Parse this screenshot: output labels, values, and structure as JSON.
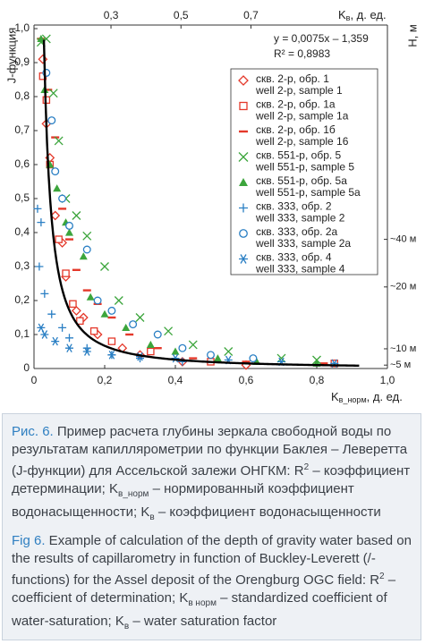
{
  "chart_data": {
    "type": "scatter",
    "ylabel": "J-функция",
    "xlabel_main": "K",
    "xlabel_sub": "в_норм",
    "xlabel_rest": ", д. ед.",
    "x2label_main": "K",
    "x2label_sub": "в",
    "x2label_rest": ", д. ед.",
    "y2label": "H, м",
    "equation": "y = 0,0075x – 1,359",
    "r2": "R² = 0,8983",
    "fit": {
      "a": 0.0075,
      "b": -1.359,
      "x_range": [
        0.028,
        0.92
      ]
    },
    "xlim": [
      0,
      1.0
    ],
    "ylim": [
      0,
      1.0
    ],
    "xticks": [
      0,
      {
        "value": 0.2,
        "label": "0,2"
      },
      {
        "value": 0.4,
        "label": "0,4"
      },
      {
        "value": 0.6,
        "label": "0,6"
      },
      {
        "value": 0.8,
        "label": "0,8"
      },
      {
        "value": 1.0,
        "label": "1,0"
      }
    ],
    "yticks": [
      0,
      {
        "value": 0.1,
        "label": "0,1"
      },
      {
        "value": 0.2,
        "label": "0,2"
      },
      {
        "value": 0.3,
        "label": "0,3"
      },
      {
        "value": 0.4,
        "label": "0,4"
      },
      {
        "value": 0.5,
        "label": "0,5"
      },
      {
        "value": 0.6,
        "label": "0,6"
      },
      {
        "value": 0.7,
        "label": "0,7"
      },
      {
        "value": 0.8,
        "label": "0,8"
      },
      {
        "value": 0.9,
        "label": "0,9"
      },
      {
        "value": 1.0,
        "label": "1,0"
      }
    ],
    "x2lim": [
      0.08,
      1.09
    ],
    "x2ticks": [
      {
        "value": 0.3,
        "label": "0,3"
      },
      {
        "value": 0.5,
        "label": "0,5"
      },
      {
        "value": 0.7,
        "label": "0,7"
      }
    ],
    "h_markers": [
      {
        "label": "~40 м",
        "j": 0.38
      },
      {
        "label": "~20 м",
        "j": 0.24
      },
      {
        "label": "~10 м",
        "j": 0.058
      },
      {
        "label": "~5 м",
        "j": 0.01
      }
    ],
    "series": [
      {
        "name": "скв. 2-р, обр. 1",
        "name_en": "well 2-р, sample 1",
        "marker": "diamond",
        "color": "#e4382a",
        "points": [
          [
            0.025,
            0.91
          ],
          [
            0.035,
            0.72
          ],
          [
            0.045,
            0.62
          ],
          [
            0.06,
            0.45
          ],
          [
            0.08,
            0.37
          ],
          [
            0.09,
            0.27
          ],
          [
            0.12,
            0.17
          ],
          [
            0.14,
            0.15
          ],
          [
            0.18,
            0.1
          ],
          [
            0.25,
            0.06
          ],
          [
            0.3,
            0.04
          ],
          [
            0.42,
            0.02
          ],
          [
            0.6,
            0.01
          ]
        ]
      },
      {
        "name": "скв. 2-р, обр. 1а",
        "name_en": "well 2-р, sample 1a",
        "marker": "square",
        "color": "#e4382a",
        "points": [
          [
            0.025,
            0.86
          ],
          [
            0.035,
            0.79
          ],
          [
            0.045,
            0.6
          ],
          [
            0.07,
            0.38
          ],
          [
            0.09,
            0.28
          ],
          [
            0.11,
            0.19
          ],
          [
            0.13,
            0.14
          ],
          [
            0.17,
            0.11
          ],
          [
            0.22,
            0.08
          ],
          [
            0.33,
            0.05
          ],
          [
            0.5,
            0.02
          ],
          [
            0.85,
            0.015
          ]
        ]
      },
      {
        "name": "скв. 2-р, обр. 1б",
        "name_en": "well 2-р, sample 16",
        "marker": "dash",
        "color": "#e4382a",
        "points": [
          [
            0.02,
            0.97
          ],
          [
            0.04,
            0.82
          ],
          [
            0.06,
            0.68
          ],
          [
            0.08,
            0.47
          ],
          [
            0.1,
            0.38
          ],
          [
            0.12,
            0.29
          ],
          [
            0.15,
            0.23
          ],
          [
            0.18,
            0.19
          ],
          [
            0.22,
            0.15
          ],
          [
            0.27,
            0.1
          ],
          [
            0.35,
            0.06
          ],
          [
            0.45,
            0.03
          ],
          [
            0.6,
            0.02
          ],
          [
            0.82,
            0.015
          ]
        ]
      },
      {
        "name": "скв. 551-р, обр. 5",
        "name_en": "well 551-р, sample 5",
        "marker": "cross",
        "color": "#3ca53c",
        "points": [
          [
            0.02,
            0.96
          ],
          [
            0.035,
            0.97
          ],
          [
            0.055,
            0.81
          ],
          [
            0.07,
            0.67
          ],
          [
            0.09,
            0.5
          ],
          [
            0.12,
            0.45
          ],
          [
            0.15,
            0.39
          ],
          [
            0.2,
            0.3
          ],
          [
            0.24,
            0.2
          ],
          [
            0.3,
            0.15
          ],
          [
            0.38,
            0.11
          ],
          [
            0.45,
            0.07
          ],
          [
            0.55,
            0.05
          ],
          [
            0.7,
            0.03
          ],
          [
            0.8,
            0.025
          ]
        ]
      },
      {
        "name": "скв. 551-р, обр. 5а",
        "name_en": "well 551-р, sample 5a",
        "marker": "triangle",
        "color": "#3ca53c",
        "points": [
          [
            0.02,
            0.97
          ],
          [
            0.03,
            0.82
          ],
          [
            0.045,
            0.6
          ],
          [
            0.065,
            0.53
          ],
          [
            0.09,
            0.43
          ],
          [
            0.1,
            0.4
          ],
          [
            0.14,
            0.33
          ],
          [
            0.16,
            0.21
          ],
          [
            0.2,
            0.16
          ],
          [
            0.26,
            0.12
          ],
          [
            0.33,
            0.07
          ],
          [
            0.4,
            0.05
          ],
          [
            0.52,
            0.03
          ],
          [
            0.63,
            0.02
          ],
          [
            0.8,
            0.015
          ]
        ]
      },
      {
        "name": "скв. 333, обр. 2",
        "name_en": "well 333, sample 2",
        "marker": "plus",
        "color": "#2a7fc4",
        "points": [
          [
            0.01,
            0.47
          ],
          [
            0.02,
            0.43
          ],
          [
            0.015,
            0.3
          ],
          [
            0.03,
            0.22
          ],
          [
            0.05,
            0.16
          ],
          [
            0.08,
            0.12
          ],
          [
            0.1,
            0.09
          ],
          [
            0.15,
            0.06
          ],
          [
            0.22,
            0.04
          ],
          [
            0.3,
            0.03
          ],
          [
            0.42,
            0.02
          ]
        ]
      },
      {
        "name": "скв. 333, обр. 2а",
        "name_en": "well 333, sample 2a",
        "marker": "circle",
        "color": "#2a7fc4",
        "points": [
          [
            0.035,
            0.87
          ],
          [
            0.05,
            0.73
          ],
          [
            0.06,
            0.58
          ],
          [
            0.08,
            0.5
          ],
          [
            0.1,
            0.42
          ],
          [
            0.15,
            0.35
          ],
          [
            0.18,
            0.2
          ],
          [
            0.22,
            0.17
          ],
          [
            0.28,
            0.13
          ],
          [
            0.35,
            0.1
          ],
          [
            0.42,
            0.06
          ],
          [
            0.5,
            0.04
          ],
          [
            0.62,
            0.03
          ]
        ]
      },
      {
        "name": "скв. 333, обр. 4",
        "name_en": "well 333, sample 4",
        "marker": "asterisk",
        "color": "#2a7fc4",
        "points": [
          [
            0.02,
            0.12
          ],
          [
            0.03,
            0.1
          ],
          [
            0.06,
            0.08
          ],
          [
            0.1,
            0.06
          ],
          [
            0.15,
            0.05
          ],
          [
            0.22,
            0.04
          ],
          [
            0.3,
            0.035
          ],
          [
            0.4,
            0.03
          ],
          [
            0.55,
            0.025
          ],
          [
            0.7,
            0.02
          ],
          [
            0.85,
            0.015
          ]
        ]
      }
    ]
  },
  "caption": [
    [
      {
        "text": "Рис. 6.",
        "style": "label"
      },
      {
        "text": " Пример расчета глубины зеркала свободной воды по результатам капиллярометрии по функции Баклея – Леверетта (J-функции) для Ассельской залежи ОНГКМ: R"
      },
      {
        "text": "2",
        "style": "sup"
      },
      {
        "text": " – коэффициент детерминации; K"
      },
      {
        "text": "в_норм",
        "style": "sub"
      },
      {
        "text": " – нормированный коэффициент водонасыщенности; K"
      },
      {
        "text": "в",
        "style": "sub"
      },
      {
        "text": " – коэффициент водонасыщенности"
      }
    ],
    [
      {
        "text": "Fig 6.",
        "style": "label"
      },
      {
        "text": " Example of calculation of the depth of gravity water based on the results of capillarometry in function of Buckley-Leverett (/-functions) for the Assel deposit of the Orengburg OGC field: R"
      },
      {
        "text": "2",
        "style": "sup"
      },
      {
        "text": " – coefficient of determination; K"
      },
      {
        "text": "в норм",
        "style": "sub"
      },
      {
        "text": " – standardized coefficient of water-saturation; K"
      },
      {
        "text": "в",
        "style": "sub"
      },
      {
        "text": " – water saturation factor"
      }
    ]
  ]
}
